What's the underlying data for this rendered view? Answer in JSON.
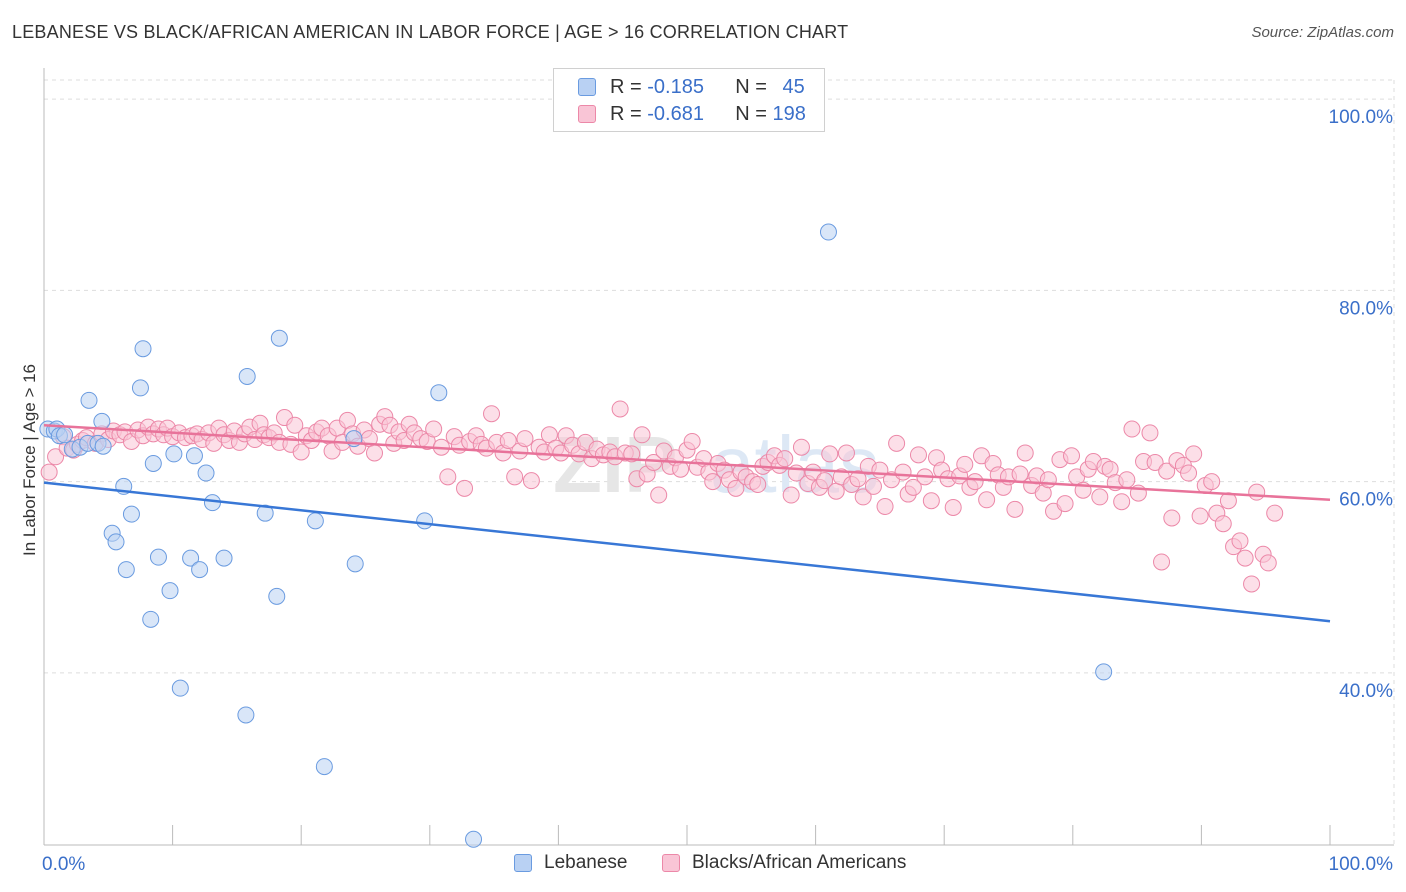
{
  "header": {
    "title": "LEBANESE VS BLACK/AFRICAN AMERICAN IN LABOR FORCE | AGE > 16 CORRELATION CHART",
    "source": "Source: ZipAtlas.com"
  },
  "legend": {
    "series1": {
      "r_label": "R = ",
      "r_value": "-0.185",
      "n_label": "N = ",
      "n_value": "45"
    },
    "series2": {
      "r_label": "R = ",
      "r_value": "-0.681",
      "n_label": "N = ",
      "n_value": "198"
    }
  },
  "colors": {
    "blue_fill": "#b9d1f3",
    "blue_stroke": "#6a9be0",
    "blue_line": "#3877d6",
    "pink_fill": "#f9c5d6",
    "pink_stroke": "#ec88a8",
    "pink_line": "#e8739a",
    "tick_label": "#3a6fc9",
    "grid": "#dddddd"
  },
  "chart_data": {
    "type": "scatter",
    "title": "LEBANESE VS BLACK/AFRICAN AMERICAN IN LABOR FORCE | AGE > 16 CORRELATION CHART",
    "ylabel": "In Labor Force | Age > 16",
    "xlabel": "",
    "xlim": [
      0,
      100
    ],
    "ylim": [
      22,
      102
    ],
    "x_tick_labels": [
      "0.0%",
      "100.0%"
    ],
    "y_ticks": [
      40,
      60,
      80,
      100
    ],
    "y_tick_labels": [
      "40.0%",
      "60.0%",
      "80.0%",
      "100.0%"
    ],
    "grid": true,
    "legend_position": "bottom",
    "watermark": "ZIPatlas",
    "series": [
      {
        "name": "Lebanese",
        "r": -0.185,
        "n": 45,
        "trend": {
          "x": [
            0,
            100
          ],
          "y": [
            59.9,
            45.4
          ]
        },
        "points": [
          [
            0.3,
            65.5
          ],
          [
            0.8,
            65.3
          ],
          [
            1.0,
            65.5
          ],
          [
            1.2,
            64.8
          ],
          [
            1.6,
            64.9
          ],
          [
            2.2,
            63.4
          ],
          [
            2.8,
            63.6
          ],
          [
            3.4,
            64.0
          ],
          [
            3.5,
            68.5
          ],
          [
            4.2,
            64.0
          ],
          [
            4.5,
            66.3
          ],
          [
            4.6,
            63.7
          ],
          [
            5.3,
            54.6
          ],
          [
            5.6,
            53.7
          ],
          [
            6.2,
            59.5
          ],
          [
            6.4,
            50.8
          ],
          [
            6.8,
            56.6
          ],
          [
            7.5,
            69.8
          ],
          [
            7.7,
            73.9
          ],
          [
            8.3,
            45.6
          ],
          [
            8.5,
            61.9
          ],
          [
            8.9,
            52.1
          ],
          [
            9.8,
            48.6
          ],
          [
            10.1,
            62.9
          ],
          [
            10.6,
            38.4
          ],
          [
            11.4,
            52.0
          ],
          [
            11.7,
            62.7
          ],
          [
            12.1,
            50.8
          ],
          [
            12.6,
            60.9
          ],
          [
            13.1,
            57.8
          ],
          [
            14.0,
            52.0
          ],
          [
            15.7,
            35.6
          ],
          [
            15.8,
            71.0
          ],
          [
            17.2,
            56.7
          ],
          [
            18.1,
            48.0
          ],
          [
            18.3,
            75.0
          ],
          [
            21.1,
            55.9
          ],
          [
            21.8,
            30.2
          ],
          [
            24.1,
            64.5
          ],
          [
            24.2,
            51.4
          ],
          [
            29.6,
            55.9
          ],
          [
            30.7,
            69.3
          ],
          [
            33.4,
            22.6
          ],
          [
            61.0,
            86.1
          ],
          [
            82.4,
            40.1
          ]
        ]
      },
      {
        "name": "Blacks/African Americans",
        "r": -0.681,
        "n": 198,
        "trend": {
          "x": [
            0,
            100
          ],
          "y": [
            65.9,
            58.1
          ]
        },
        "points": [
          [
            0.4,
            61.0
          ],
          [
            0.9,
            62.6
          ],
          [
            1.5,
            64.7
          ],
          [
            1.8,
            63.5
          ],
          [
            2.3,
            63.3
          ],
          [
            2.6,
            63.9
          ],
          [
            3.0,
            64.3
          ],
          [
            3.3,
            64.6
          ],
          [
            4.0,
            64.0
          ],
          [
            4.5,
            65.0
          ],
          [
            5.0,
            64.4
          ],
          [
            5.4,
            65.3
          ],
          [
            5.9,
            64.9
          ],
          [
            6.3,
            65.2
          ],
          [
            6.8,
            64.2
          ],
          [
            7.3,
            65.4
          ],
          [
            7.7,
            64.8
          ],
          [
            8.1,
            65.7
          ],
          [
            8.5,
            65.0
          ],
          [
            8.9,
            65.5
          ],
          [
            9.3,
            64.9
          ],
          [
            9.6,
            65.6
          ],
          [
            10.0,
            64.7
          ],
          [
            10.5,
            65.1
          ],
          [
            11.0,
            64.6
          ],
          [
            11.5,
            64.8
          ],
          [
            11.9,
            65.0
          ],
          [
            12.3,
            64.4
          ],
          [
            12.8,
            65.1
          ],
          [
            13.2,
            64.0
          ],
          [
            13.6,
            65.6
          ],
          [
            14.0,
            64.9
          ],
          [
            14.4,
            64.3
          ],
          [
            14.8,
            65.3
          ],
          [
            15.2,
            64.1
          ],
          [
            15.6,
            65.0
          ],
          [
            16.0,
            65.7
          ],
          [
            16.4,
            64.4
          ],
          [
            16.8,
            66.1
          ],
          [
            17.1,
            64.9
          ],
          [
            17.5,
            64.6
          ],
          [
            17.9,
            65.1
          ],
          [
            18.3,
            64.1
          ],
          [
            18.7,
            66.7
          ],
          [
            19.2,
            63.9
          ],
          [
            19.5,
            65.9
          ],
          [
            20.0,
            63.1
          ],
          [
            20.4,
            64.8
          ],
          [
            20.8,
            64.3
          ],
          [
            21.2,
            65.2
          ],
          [
            21.6,
            65.6
          ],
          [
            22.1,
            64.8
          ],
          [
            22.4,
            63.2
          ],
          [
            22.8,
            65.6
          ],
          [
            23.2,
            64.1
          ],
          [
            23.6,
            66.4
          ],
          [
            24.0,
            65.0
          ],
          [
            24.4,
            63.7
          ],
          [
            24.9,
            65.4
          ],
          [
            25.3,
            64.5
          ],
          [
            25.7,
            63.0
          ],
          [
            26.1,
            66.0
          ],
          [
            26.5,
            66.8
          ],
          [
            26.9,
            65.9
          ],
          [
            27.2,
            64.0
          ],
          [
            27.6,
            65.2
          ],
          [
            28.0,
            64.3
          ],
          [
            28.4,
            66.0
          ],
          [
            28.8,
            65.1
          ],
          [
            29.3,
            64.5
          ],
          [
            29.8,
            64.2
          ],
          [
            30.3,
            65.5
          ],
          [
            30.9,
            63.6
          ],
          [
            31.4,
            60.5
          ],
          [
            31.9,
            64.7
          ],
          [
            32.3,
            63.8
          ],
          [
            32.7,
            59.3
          ],
          [
            33.1,
            64.2
          ],
          [
            33.6,
            64.8
          ],
          [
            34.0,
            63.9
          ],
          [
            34.4,
            63.5
          ],
          [
            34.8,
            67.1
          ],
          [
            35.2,
            64.1
          ],
          [
            35.7,
            63.0
          ],
          [
            36.1,
            64.3
          ],
          [
            36.6,
            60.5
          ],
          [
            37.0,
            63.2
          ],
          [
            37.4,
            64.5
          ],
          [
            37.9,
            60.1
          ],
          [
            38.5,
            63.6
          ],
          [
            38.9,
            63.1
          ],
          [
            39.3,
            64.9
          ],
          [
            39.8,
            63.5
          ],
          [
            40.2,
            63.0
          ],
          [
            40.6,
            64.8
          ],
          [
            41.1,
            63.8
          ],
          [
            41.6,
            62.9
          ],
          [
            42.1,
            64.1
          ],
          [
            42.6,
            62.4
          ],
          [
            43.0,
            63.4
          ],
          [
            43.5,
            62.8
          ],
          [
            44.0,
            63.1
          ],
          [
            44.4,
            62.6
          ],
          [
            44.8,
            67.6
          ],
          [
            45.2,
            63.0
          ],
          [
            45.7,
            62.9
          ],
          [
            46.1,
            60.3
          ],
          [
            46.5,
            64.9
          ],
          [
            46.9,
            60.8
          ],
          [
            47.4,
            62.0
          ],
          [
            47.8,
            58.6
          ],
          [
            48.2,
            63.2
          ],
          [
            48.7,
            61.6
          ],
          [
            49.1,
            62.5
          ],
          [
            49.5,
            61.3
          ],
          [
            50.0,
            63.3
          ],
          [
            50.4,
            64.2
          ],
          [
            50.8,
            61.5
          ],
          [
            51.3,
            62.4
          ],
          [
            51.7,
            61.0
          ],
          [
            52.0,
            60.0
          ],
          [
            52.4,
            61.9
          ],
          [
            52.9,
            61.2
          ],
          [
            53.3,
            60.2
          ],
          [
            53.8,
            59.3
          ],
          [
            54.2,
            61.0
          ],
          [
            54.6,
            60.5
          ],
          [
            55.1,
            60.0
          ],
          [
            55.5,
            59.7
          ],
          [
            55.9,
            61.6
          ],
          [
            56.3,
            62.0
          ],
          [
            56.8,
            62.7
          ],
          [
            57.2,
            61.7
          ],
          [
            57.6,
            62.4
          ],
          [
            58.1,
            58.6
          ],
          [
            58.5,
            60.9
          ],
          [
            58.9,
            63.6
          ],
          [
            59.4,
            59.8
          ],
          [
            59.8,
            61.0
          ],
          [
            60.3,
            59.4
          ],
          [
            60.7,
            60.1
          ],
          [
            61.1,
            62.9
          ],
          [
            61.6,
            59.0
          ],
          [
            62.0,
            60.5
          ],
          [
            62.4,
            63.0
          ],
          [
            62.8,
            59.7
          ],
          [
            63.3,
            60.3
          ],
          [
            63.7,
            58.4
          ],
          [
            64.1,
            61.6
          ],
          [
            64.5,
            59.5
          ],
          [
            65.0,
            61.2
          ],
          [
            65.4,
            57.4
          ],
          [
            65.9,
            60.2
          ],
          [
            66.3,
            64.0
          ],
          [
            66.8,
            61.0
          ],
          [
            67.2,
            58.7
          ],
          [
            67.6,
            59.4
          ],
          [
            68.0,
            62.8
          ],
          [
            68.5,
            60.5
          ],
          [
            69.0,
            58.0
          ],
          [
            69.4,
            62.5
          ],
          [
            69.8,
            61.2
          ],
          [
            70.3,
            60.3
          ],
          [
            70.7,
            57.3
          ],
          [
            71.2,
            60.6
          ],
          [
            71.6,
            61.8
          ],
          [
            72.0,
            59.4
          ],
          [
            72.4,
            60.0
          ],
          [
            72.9,
            62.7
          ],
          [
            73.3,
            58.1
          ],
          [
            73.8,
            61.9
          ],
          [
            74.2,
            60.7
          ],
          [
            74.6,
            59.4
          ],
          [
            75.0,
            60.5
          ],
          [
            75.5,
            57.1
          ],
          [
            75.9,
            60.8
          ],
          [
            76.3,
            63.0
          ],
          [
            76.8,
            59.6
          ],
          [
            77.2,
            60.6
          ],
          [
            77.7,
            58.8
          ],
          [
            78.1,
            60.2
          ],
          [
            78.5,
            56.9
          ],
          [
            79.0,
            62.3
          ],
          [
            79.4,
            57.7
          ],
          [
            79.9,
            62.7
          ],
          [
            80.3,
            60.5
          ],
          [
            80.8,
            59.1
          ],
          [
            81.2,
            61.3
          ],
          [
            81.6,
            62.1
          ],
          [
            82.1,
            58.4
          ],
          [
            82.5,
            61.6
          ],
          [
            82.9,
            61.3
          ],
          [
            83.3,
            59.9
          ],
          [
            83.8,
            57.9
          ],
          [
            84.2,
            60.2
          ],
          [
            84.6,
            65.5
          ],
          [
            85.1,
            58.8
          ],
          [
            85.5,
            62.1
          ],
          [
            86.0,
            65.1
          ],
          [
            86.4,
            62.0
          ],
          [
            86.9,
            51.6
          ],
          [
            87.3,
            61.1
          ],
          [
            87.7,
            56.2
          ],
          [
            88.1,
            62.2
          ],
          [
            88.6,
            61.7
          ],
          [
            89.0,
            60.9
          ],
          [
            89.4,
            62.9
          ],
          [
            89.9,
            56.4
          ],
          [
            90.3,
            59.6
          ],
          [
            90.8,
            60.0
          ],
          [
            91.2,
            56.7
          ],
          [
            91.7,
            55.6
          ],
          [
            92.1,
            58.0
          ],
          [
            92.5,
            53.2
          ],
          [
            93.0,
            53.8
          ],
          [
            93.4,
            52.0
          ],
          [
            93.9,
            49.3
          ],
          [
            94.3,
            58.9
          ],
          [
            94.8,
            52.4
          ],
          [
            95.2,
            51.5
          ],
          [
            95.7,
            56.7
          ]
        ]
      }
    ]
  }
}
